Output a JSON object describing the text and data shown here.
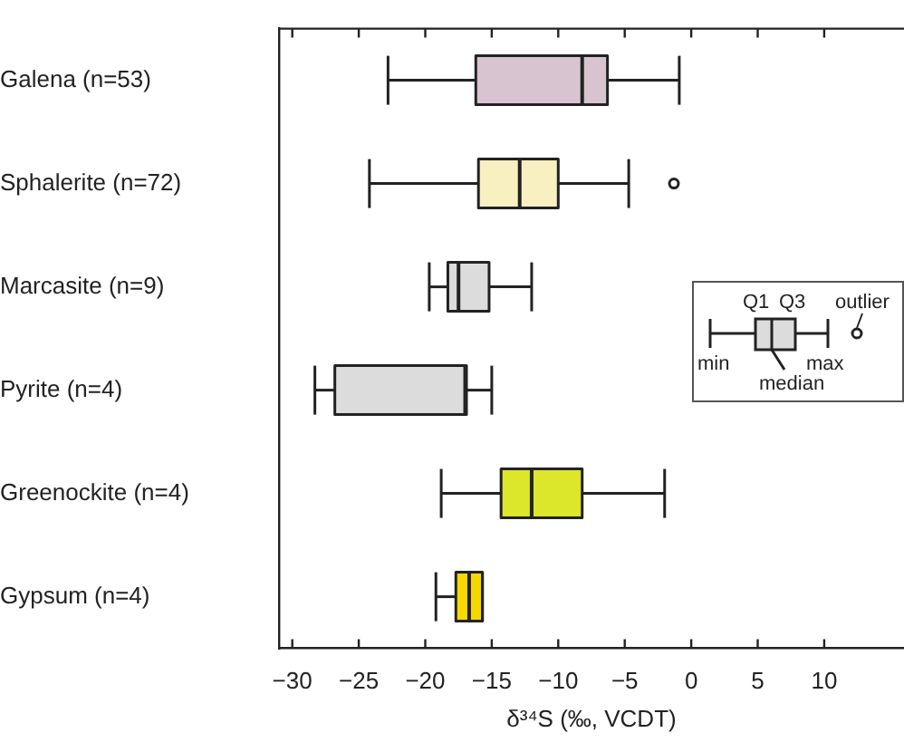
{
  "chart_data": {
    "type": "box",
    "orientation": "horizontal",
    "xlabel": "δ³⁴S (‰, VCDT)",
    "categories": [
      "Galena (n=53)",
      "Sphalerite (n=72)",
      "Marcasite (n=9)",
      "Pyrite (n=4)",
      "Greenockite (n=4)",
      "Gypsum (n=4)"
    ],
    "colors": [
      "#d8c4d0",
      "#f8f0c0",
      "#dcdcdc",
      "#dcdcdc",
      "#dce62a",
      "#f5d800"
    ],
    "boxes": [
      {
        "low": -22.8,
        "q1": -16.2,
        "median": -8.2,
        "q3": -6.3,
        "high": -0.9
      },
      {
        "low": -24.2,
        "q1": -16,
        "median": -12.9,
        "q3": -10,
        "high": -4.7,
        "outliers": [
          -1.3
        ]
      },
      {
        "low": -19.7,
        "q1": -18.3,
        "median": -17.5,
        "q3": -15.2,
        "high": -12
      },
      {
        "low": -28.3,
        "q1": -26.8,
        "median": -17,
        "q3": -16.9,
        "high": -15
      },
      {
        "low": -18.8,
        "q1": -14.3,
        "median": -12,
        "q3": -8.2,
        "high": -2
      },
      {
        "low": -19.2,
        "q1": -17.7,
        "median": -16.7,
        "q3": -15.7,
        "high": -15.7
      }
    ],
    "xlim": [
      -31,
      16
    ],
    "xticks": [
      {
        "value": -30,
        "label": "−30"
      },
      {
        "value": -25,
        "label": "−25"
      },
      {
        "value": -20,
        "label": "−20"
      },
      {
        "value": -15,
        "label": "−15"
      },
      {
        "value": -10,
        "label": "−10"
      },
      {
        "value": -5,
        "label": "−5"
      },
      0,
      5,
      10
    ],
    "annotations": [
      "Q1",
      "Q3",
      "outlier",
      "min",
      "max",
      "median"
    ]
  }
}
